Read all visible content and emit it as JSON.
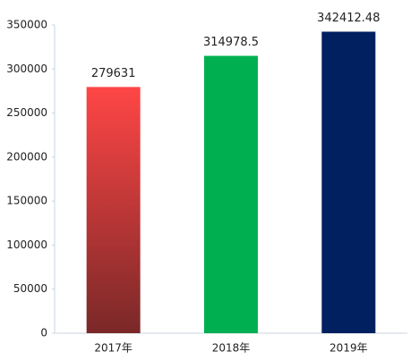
{
  "chart_data": {
    "type": "bar",
    "categories": [
      "2017年",
      "2018年",
      "2019年"
    ],
    "values": [
      279631,
      314978.5,
      342412.48
    ],
    "colors": [
      "#ff4646",
      "#00b050",
      "#002060"
    ],
    "bar_gradients": [
      {
        "top": "#ff4646",
        "bottom": "#7a2828"
      },
      null,
      null
    ],
    "ylim": [
      0,
      350000
    ],
    "yticks": [
      0,
      50000,
      100000,
      150000,
      200000,
      250000,
      300000,
      350000
    ],
    "grid": false
  }
}
